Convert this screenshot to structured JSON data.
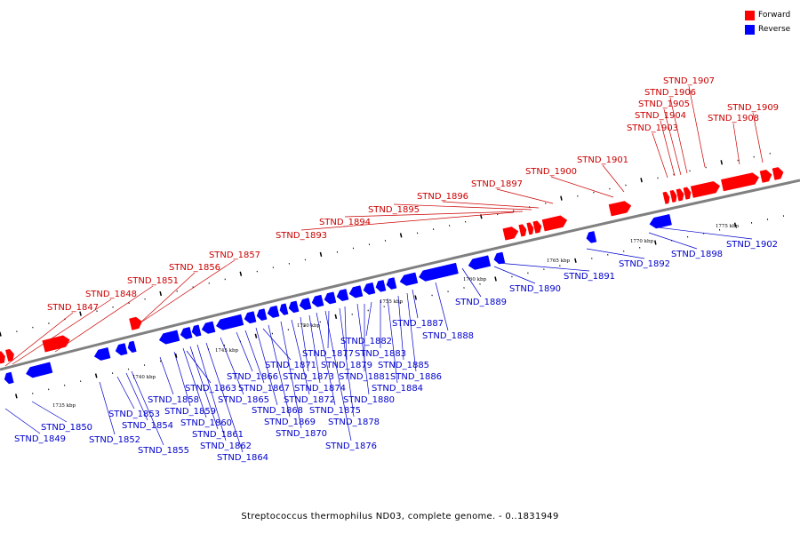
{
  "caption": "Streptococcus thermophilus ND03, complete genome. - 0..1831949",
  "legend": {
    "forward": {
      "label": "Forward",
      "color": "#ff0000"
    },
    "reverse": {
      "label": "Reverse",
      "color": "#0000ff"
    }
  },
  "colors": {
    "backbone": "#808080",
    "forward_label": "#cc0000",
    "reverse_label": "#0000cc",
    "tick_label": "#000000"
  },
  "scale_labels": [
    "1735 kbp",
    "1740 kbp",
    "1745 kbp",
    "1750 kbp",
    "1755 kbp",
    "1760 kbp",
    "1765 kbp",
    "1770 kbp",
    "1775 kbp"
  ],
  "forward_genes": [
    "STND_1847",
    "STND_1848",
    "STND_1851",
    "STND_1856",
    "STND_1857",
    "STND_1893",
    "STND_1894",
    "STND_1895",
    "STND_1896",
    "STND_1897",
    "STND_1900",
    "STND_1901",
    "STND_1903",
    "STND_1904",
    "STND_1905",
    "STND_1906",
    "STND_1907",
    "STND_1908",
    "STND_1909"
  ],
  "reverse_genes": [
    "STND_1849",
    "STND_1850",
    "STND_1852",
    "STND_1853",
    "STND_1854",
    "STND_1855",
    "STND_1858",
    "STND_1859",
    "STND_1860",
    "STND_1861",
    "STND_1862",
    "STND_1863",
    "STND_1864",
    "STND_1865",
    "STND_1866",
    "STND_1867",
    "STND_1868",
    "STND_1869",
    "STND_1870",
    "STND_1871",
    "STND_1872",
    "STND_1873",
    "STND_1874",
    "STND_1875",
    "STND_1876",
    "STND_1877",
    "STND_1878",
    "STND_1879",
    "STND_1880",
    "STND_1881",
    "STND_1882",
    "STND_1883",
    "STND_1884",
    "STND_1885",
    "STND_1886",
    "STND_1887",
    "STND_1888",
    "STND_1889",
    "STND_1890",
    "STND_1891",
    "STND_1892",
    "STND_1898",
    "STND_1902"
  ]
}
